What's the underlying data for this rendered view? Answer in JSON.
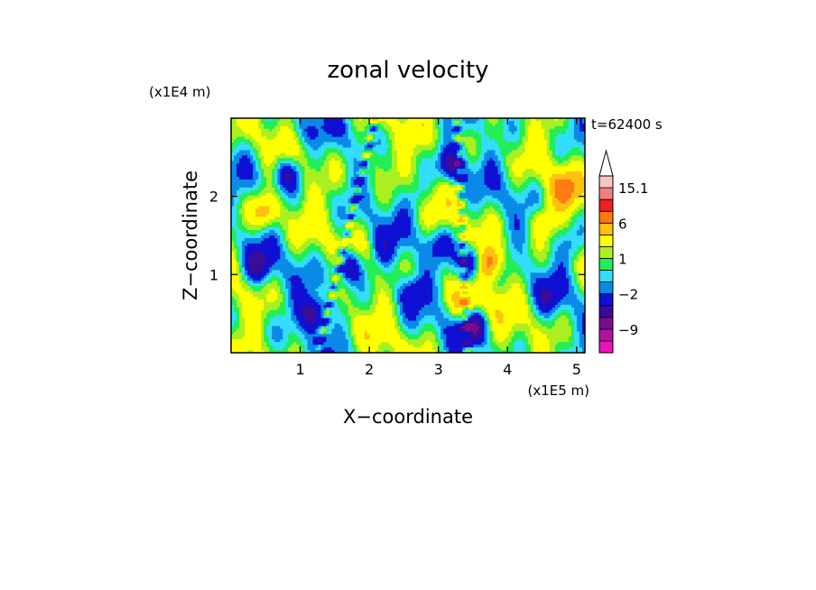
{
  "chart_data": {
    "type": "heatmap",
    "title": "zonal velocity",
    "xlabel": "X−coordinate",
    "ylabel": "Z−coordinate",
    "x_unit": "(x1E5 m)",
    "y_unit": "(x1E4 m)",
    "time_label": "t=62400 s",
    "xlim": [
      0,
      5.12
    ],
    "ylim": [
      0,
      3.0
    ],
    "x_ticks": [
      {
        "value": 1,
        "label": "1"
      },
      {
        "value": 2,
        "label": "2"
      },
      {
        "value": 3,
        "label": "3"
      },
      {
        "value": 4,
        "label": "4"
      },
      {
        "value": 5,
        "label": "5"
      }
    ],
    "y_ticks": [
      {
        "value": 1,
        "label": "1"
      },
      {
        "value": 2,
        "label": "2"
      }
    ],
    "colorbar": {
      "levels": [
        -15,
        -12,
        -9,
        -6,
        -4,
        -2,
        -1,
        0,
        1,
        2,
        4,
        6,
        9,
        12,
        15.1
      ],
      "colors": [
        "#ee11bb",
        "#b4129e",
        "#7a0c90",
        "#3a0c9a",
        "#1010d4",
        "#0a8ae6",
        "#33ddff",
        "#22ee55",
        "#aaf020",
        "#ffff00",
        "#ffc010",
        "#ff7a10",
        "#ee2020",
        "#f08080",
        "#f8c4c4"
      ],
      "extend_color": "#ffffff",
      "tick_labels": [
        {
          "value": 15.1,
          "label": "15.1"
        },
        {
          "value": 6,
          "label": "6"
        },
        {
          "value": 1,
          "label": "1"
        },
        {
          "value": -2,
          "label": "−2"
        },
        {
          "value": -9,
          "label": "−9"
        }
      ]
    },
    "features": [
      {
        "x": 0.5,
        "z": 1.8,
        "u": 5
      },
      {
        "x": 0.8,
        "z": 2.3,
        "u": -5
      },
      {
        "x": 1.7,
        "z": 1.1,
        "u": -7
      },
      {
        "x": 1.2,
        "z": 0.5,
        "u": -6
      },
      {
        "x": 0.4,
        "z": 1.1,
        "u": -4
      },
      {
        "x": 3.5,
        "z": 1.15,
        "u": -9
      },
      {
        "x": 3.7,
        "z": 1.15,
        "u": 9
      },
      {
        "x": 3.4,
        "z": 0.6,
        "u": 5
      },
      {
        "x": 3.5,
        "z": 0.35,
        "u": -6
      },
      {
        "x": 3.2,
        "z": 2.4,
        "u": -6
      },
      {
        "x": 2.2,
        "z": 1.3,
        "u": -2
      },
      {
        "x": 2.1,
        "z": 2.5,
        "u": 2
      },
      {
        "x": 4.5,
        "z": 1.7,
        "u": 4
      },
      {
        "x": 4.9,
        "z": 1.4,
        "u": -2
      },
      {
        "x": 4.8,
        "z": 2.1,
        "u": 5
      },
      {
        "x": 4.6,
        "z": 0.7,
        "u": -2
      },
      {
        "x": 2.7,
        "z": 2.0,
        "u": -2
      },
      {
        "x": 1.0,
        "z": 2.8,
        "u": -2
      },
      {
        "x": 3.0,
        "z": 1.4,
        "u": -3
      },
      {
        "x": 2.6,
        "z": 0.8,
        "u": -3
      }
    ]
  }
}
